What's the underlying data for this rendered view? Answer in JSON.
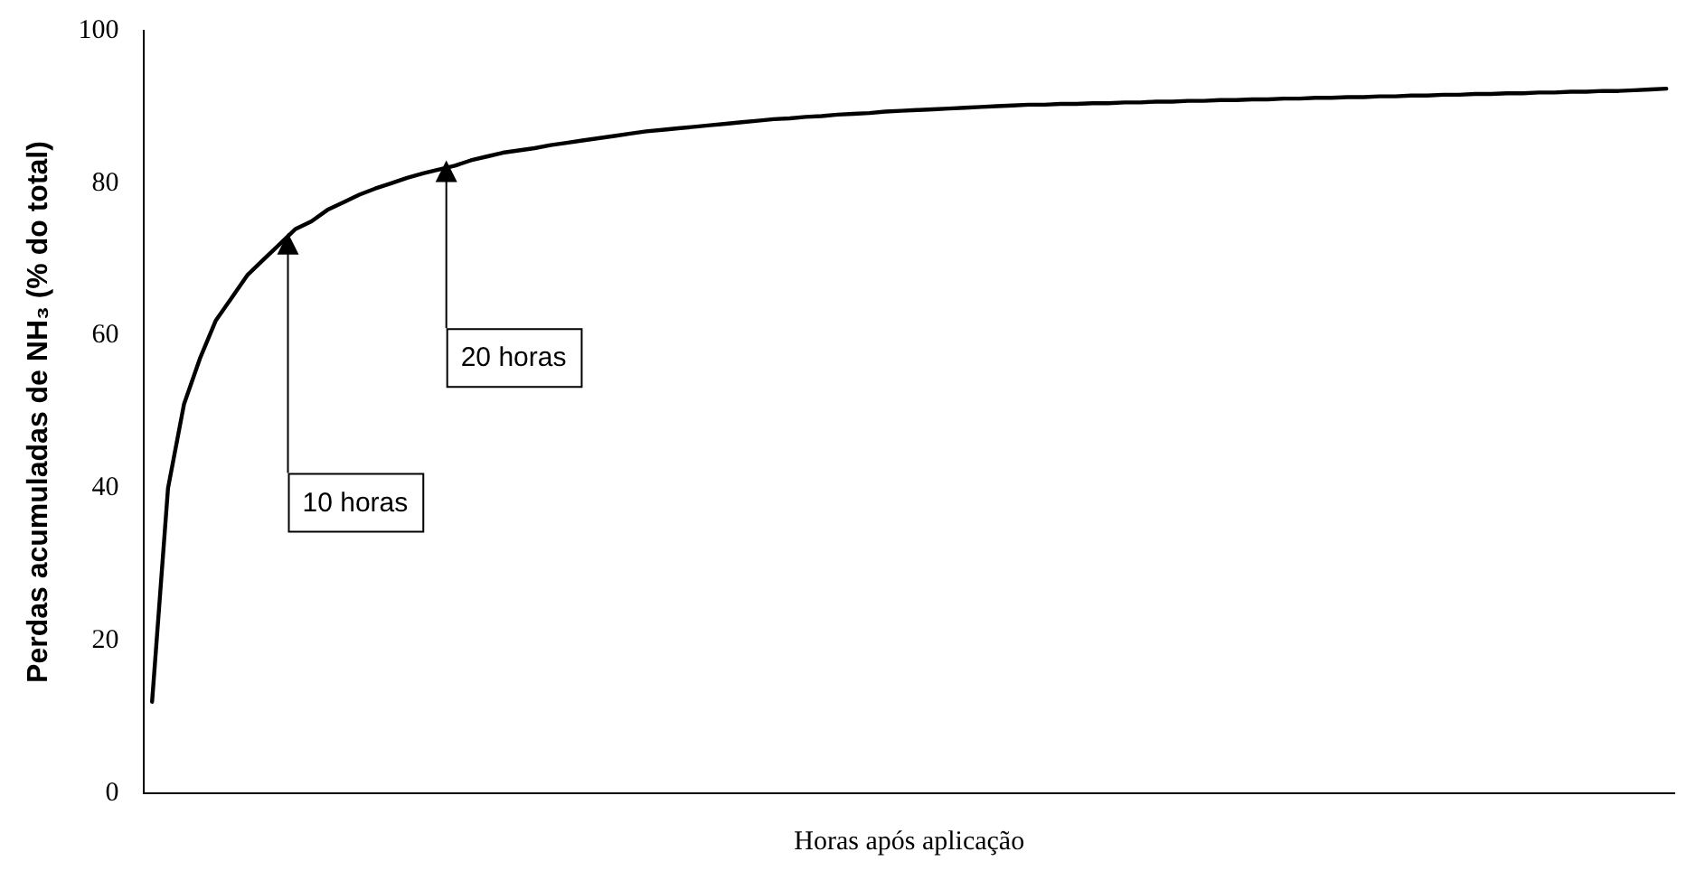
{
  "chart_data": {
    "type": "line",
    "xlabel": "Horas após aplicação",
    "ylabel": "Perdas acumuladas de NH₃ (% do total)",
    "categories": [
      null,
      null,
      null,
      null,
      null,
      null,
      null,
      null,
      null,
      null,
      null,
      null,
      null,
      null,
      null,
      null,
      null,
      null,
      null,
      null,
      null,
      null,
      null,
      null,
      null,
      null,
      null,
      null,
      null,
      null,
      null,
      null,
      null,
      null,
      null,
      null,
      null,
      null,
      null,
      null,
      null,
      null,
      null,
      null,
      null,
      null,
      null,
      null,
      null,
      null,
      null,
      null,
      null,
      null,
      null,
      null,
      null,
      null,
      null,
      null,
      null,
      null,
      null,
      null,
      null,
      null,
      null,
      null,
      null,
      null,
      null,
      null,
      null,
      null,
      null,
      null,
      null,
      null,
      null,
      null,
      null,
      null,
      null,
      null,
      null,
      null,
      null,
      null,
      null,
      null,
      null,
      null,
      null,
      null,
      null,
      null
    ],
    "series": [
      {
        "color": "#000000",
        "values": [
          12,
          40,
          51,
          57,
          62,
          65,
          68,
          70,
          72,
          74,
          75,
          76.5,
          77.5,
          78.5,
          79.3,
          80,
          80.7,
          81.3,
          81.8,
          82.3,
          83,
          83.5,
          84,
          84.3,
          84.6,
          85,
          85.3,
          85.6,
          85.9,
          86.2,
          86.5,
          86.8,
          87,
          87.2,
          87.4,
          87.6,
          87.8,
          88,
          88.2,
          88.4,
          88.5,
          88.7,
          88.8,
          89,
          89.1,
          89.2,
          89.4,
          89.5,
          89.6,
          89.7,
          89.8,
          89.9,
          90,
          90.1,
          90.2,
          90.3,
          90.3,
          90.4,
          90.4,
          90.5,
          90.5,
          90.6,
          90.6,
          90.7,
          90.7,
          90.8,
          90.8,
          90.9,
          90.9,
          91,
          91,
          91.1,
          91.1,
          91.2,
          91.2,
          91.3,
          91.3,
          91.4,
          91.4,
          91.5,
          91.5,
          91.6,
          91.6,
          91.7,
          91.7,
          91.8,
          91.8,
          91.9,
          91.9,
          92,
          92,
          92.1,
          92.1,
          92.2,
          92.3,
          92.4
        ]
      }
    ],
    "annotations": [
      "10 horas",
      "20 horas"
    ],
    "ylim": [
      0,
      100
    ],
    "yticks": [
      0,
      20,
      40,
      60,
      80,
      100
    ],
    "grid": false,
    "legend": false,
    "marker": "none",
    "line_style": "solid",
    "tick_labels": "y"
  }
}
